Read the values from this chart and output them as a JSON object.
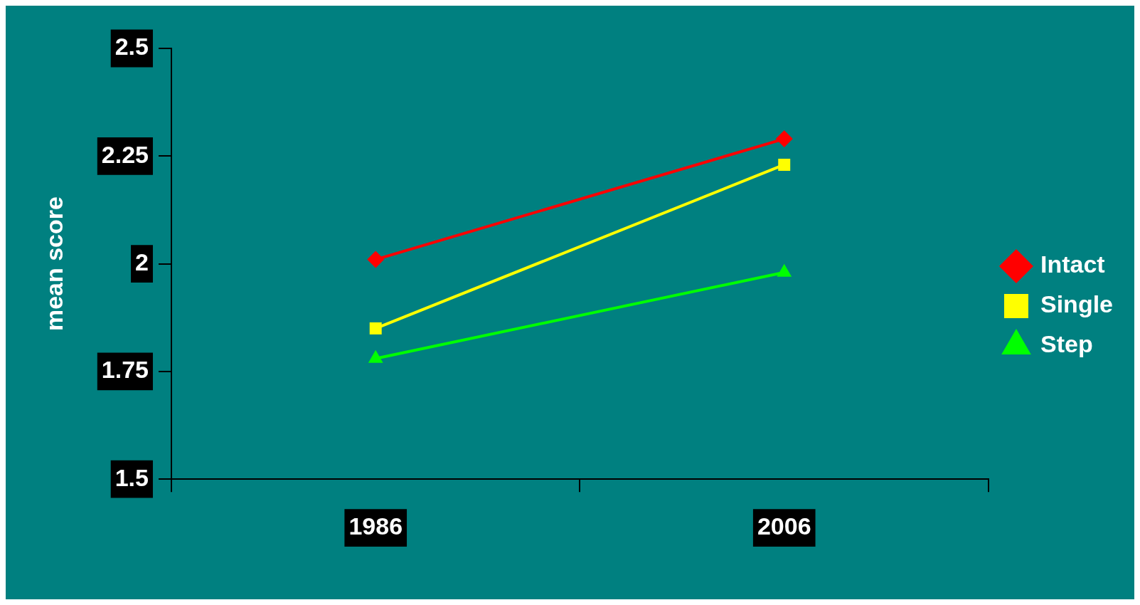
{
  "chart_data": {
    "type": "line",
    "ylabel": "mean score",
    "categories": [
      "1986",
      "2006"
    ],
    "series": [
      {
        "name": "Intact",
        "color": "#ff0000",
        "marker": "diamond",
        "values": [
          2.01,
          2.29
        ]
      },
      {
        "name": "Single",
        "color": "#ffff00",
        "marker": "square",
        "values": [
          1.85,
          2.23
        ]
      },
      {
        "name": "Step",
        "color": "#00ff00",
        "marker": "triangle",
        "values": [
          1.78,
          1.98
        ]
      }
    ],
    "ylim": [
      1.5,
      2.5
    ],
    "yticks": [
      1.5,
      1.75,
      2,
      2.25,
      2.5
    ],
    "grid": false,
    "legend": "right",
    "line_style": "solid"
  }
}
